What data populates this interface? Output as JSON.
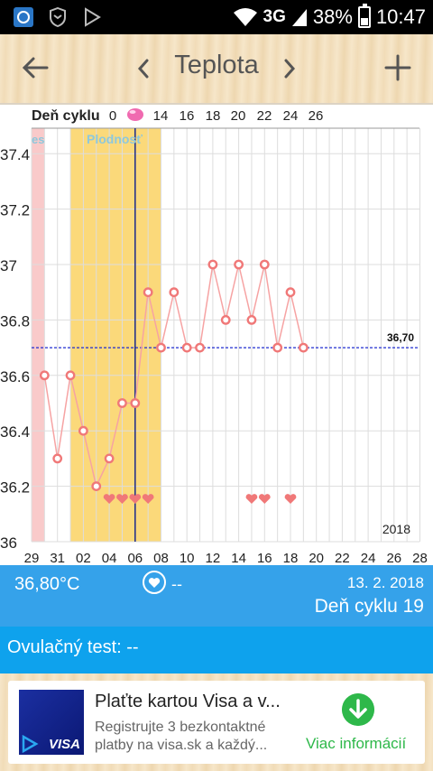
{
  "status_bar": {
    "network": "3G",
    "battery": "38%",
    "time": "10:47"
  },
  "app_bar": {
    "title": "Teplota"
  },
  "chart_data": {
    "type": "line",
    "top_label": "Deň cyklu",
    "top_ticks": [
      "0",
      "14",
      "16",
      "18",
      "20",
      "22",
      "24",
      "26"
    ],
    "fertile_label": "Plodnosť",
    "period_label": "es",
    "x_ticks": [
      "29",
      "31",
      "02",
      "04",
      "06",
      "08",
      "10",
      "12",
      "14",
      "16",
      "18",
      "20",
      "22",
      "24",
      "26",
      "28"
    ],
    "y_ticks": [
      "37.4",
      "37.2",
      "37",
      "36.8",
      "36.6",
      "36.4",
      "36.2",
      "36"
    ],
    "ylim": [
      36.0,
      37.5
    ],
    "series": [
      {
        "values": [
          36.6,
          36.3,
          36.6,
          36.4,
          36.2,
          36.3,
          36.5,
          36.5,
          36.9,
          36.7,
          36.9,
          36.7,
          36.7,
          37.0,
          36.8,
          37.0,
          36.8,
          37.0,
          36.7,
          36.9,
          36.7
        ]
      }
    ],
    "coverline_label": "36,70",
    "coverline_value": 36.7,
    "heart_days": [
      6,
      7,
      8,
      9,
      17,
      18,
      20
    ],
    "year_label": "2018",
    "colors": {
      "series": "#f07878",
      "fertile": "#fbd97a",
      "period": "#f9caca",
      "coverline": "#1f2bd0",
      "today": "#1a2a8a"
    }
  },
  "info": {
    "temperature": "36,80°C",
    "intercourse": "--",
    "date": "13. 2. 2018",
    "cycle_day": "Deň cyklu 19"
  },
  "ovulation_test": "Ovulačný test: --",
  "ad": {
    "title": "Plaťte kartou Visa a v...",
    "description": "Registrujte 3 bezkontaktné platby na visa.sk a každý...",
    "logo": "VISA",
    "cta": "Viac informácií"
  }
}
